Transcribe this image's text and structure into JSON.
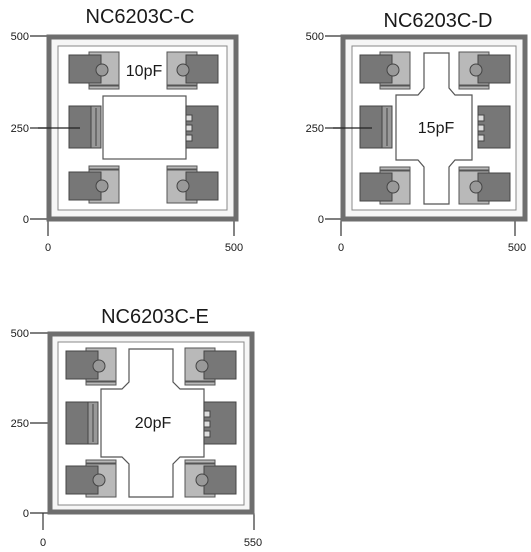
{
  "layouts": [
    {
      "title": "NC6203C-C",
      "capacitor": "10pF",
      "y_ticks": [
        "500",
        "250",
        "0"
      ],
      "x_ticks": [
        "0",
        "500"
      ]
    },
    {
      "title": "NC6203C-D",
      "capacitor": "15pF",
      "y_ticks": [
        "500",
        "250",
        "0"
      ],
      "x_ticks": [
        "0",
        "500"
      ]
    },
    {
      "title": "NC6203C-E",
      "capacitor": "20pF",
      "y_ticks": [
        "500",
        "250",
        "0"
      ],
      "x_ticks": [
        "0",
        "550"
      ]
    }
  ],
  "colors": {
    "frame": "#6e6e6e",
    "pad_dark": "#777777",
    "pad_light": "#b9b9b9",
    "line": "#333333"
  }
}
